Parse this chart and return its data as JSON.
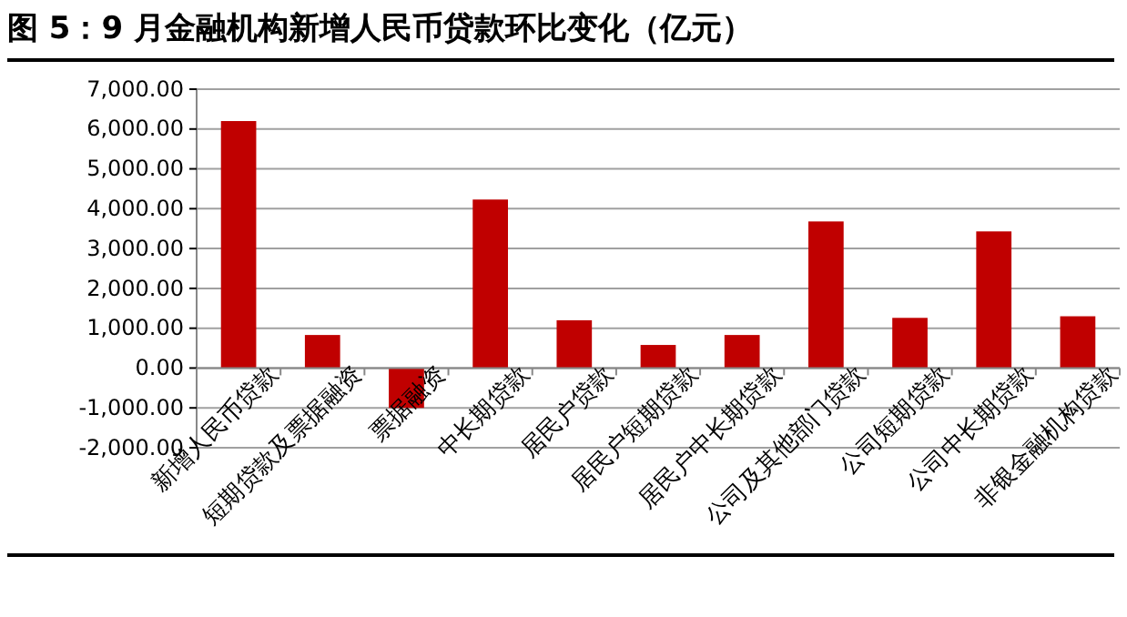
{
  "chart_data": {
    "type": "bar",
    "title": "图 5：9 月金融机构新增人民币贷款环比变化（亿元）",
    "categories": [
      "新增人民币贷款",
      "短期贷款及票据融资",
      "票据融资",
      "中长期贷款",
      "居民户贷款",
      "居民户短期贷款",
      "居民户中长期贷款",
      "公司及其他部门贷款",
      "公司短期贷款",
      "公司中长期贷款",
      "非银金融机构贷款"
    ],
    "values": [
      6200,
      830,
      -1000,
      4230,
      1200,
      580,
      830,
      3680,
      1260,
      3430,
      1300
    ],
    "color": "#c00000",
    "ylim": [
      -2000,
      7000
    ],
    "yticks": [
      {
        "value": -2000,
        "label": "-2,000.00"
      },
      {
        "value": -1000,
        "label": "-1,000.00"
      },
      {
        "value": 0,
        "label": "0.00"
      },
      {
        "value": 1000,
        "label": "1,000.00"
      },
      {
        "value": 2000,
        "label": "2,000.00"
      },
      {
        "value": 3000,
        "label": "3,000.00"
      },
      {
        "value": 4000,
        "label": "4,000.00"
      },
      {
        "value": 5000,
        "label": "5,000.00"
      },
      {
        "value": 6000,
        "label": "6,000.00"
      },
      {
        "value": 7000,
        "label": "7,000.00"
      }
    ],
    "grid": "y"
  }
}
